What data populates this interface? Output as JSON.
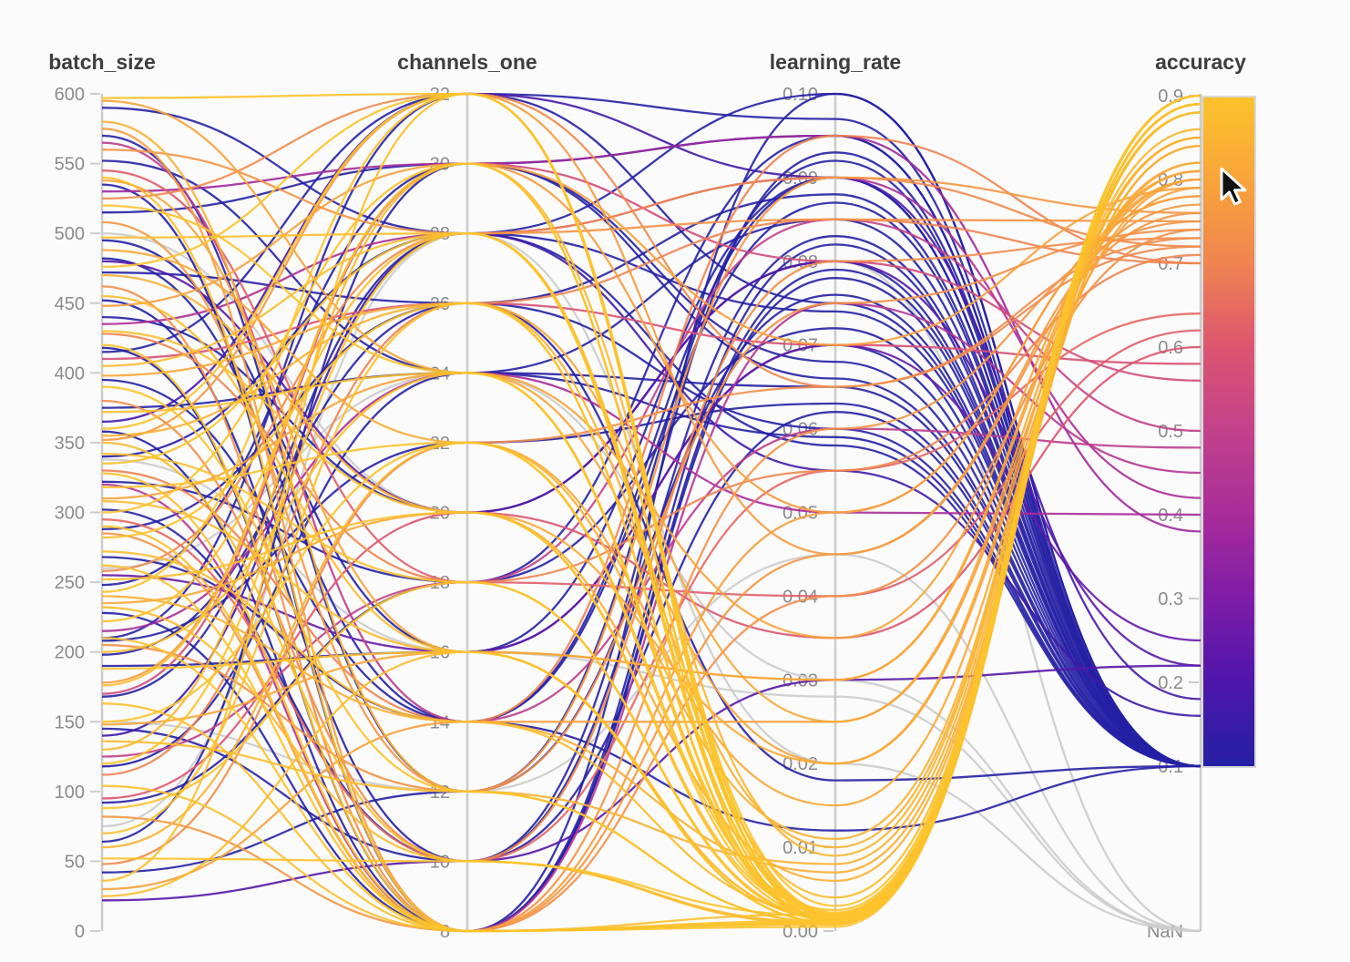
{
  "panel": {
    "background": "#fbfbfb"
  },
  "chart_data": {
    "type": "line",
    "variant": "parallel_coordinates",
    "title": "",
    "legend_position": "none",
    "grid": false,
    "columns": [
      "batch_size",
      "channels_one",
      "learning_rate",
      "accuracy"
    ],
    "axes": [
      {
        "name": "batch_size",
        "min": 0,
        "max": 600,
        "ticks": [
          "600",
          "550",
          "500",
          "450",
          "400",
          "350",
          "300",
          "250",
          "200",
          "150",
          "100",
          "50",
          "0"
        ]
      },
      {
        "name": "channels_one",
        "min": 8,
        "max": 32,
        "ticks": [
          "32",
          "30",
          "28",
          "26",
          "24",
          "22",
          "20",
          "18",
          "16",
          "14",
          "12",
          "10",
          "8"
        ]
      },
      {
        "name": "learning_rate",
        "min": 0,
        "max": 0.1,
        "ticks": [
          "0.10",
          "0.09",
          "0.08",
          "0.07",
          "0.06",
          "0.05",
          "0.04",
          "0.03",
          "0.02",
          "0.01",
          "0.00"
        ]
      },
      {
        "name": "accuracy",
        "min": 0.1,
        "max": 0.9,
        "ticks": [
          "0.9",
          "0.8",
          "0.7",
          "0.6",
          "0.5",
          "0.4",
          "0.3",
          "0.2",
          "0.1"
        ],
        "nan_label": "NaN"
      }
    ],
    "color": {
      "by": "accuracy",
      "nan_color": "#cccccc",
      "stops": [
        [
          0.9,
          "#FCC32C"
        ],
        [
          0.8,
          "#F8A43A"
        ],
        [
          0.7,
          "#EF8351"
        ],
        [
          0.6,
          "#DC5570"
        ],
        [
          0.5,
          "#C2418B"
        ],
        [
          0.4,
          "#A82C9A"
        ],
        [
          0.3,
          "#7E1CA8"
        ],
        [
          0.2,
          "#4E16AB"
        ],
        [
          0.1,
          "#2520A4"
        ]
      ]
    },
    "runs": [
      [
        597,
        32,
        0.001,
        0.9
      ],
      [
        540,
        8,
        0.0008,
        0.89
      ],
      [
        520,
        24,
        0.002,
        0.9
      ],
      [
        497,
        28,
        0.001,
        0.89
      ],
      [
        476,
        32,
        0.003,
        0.9
      ],
      [
        455,
        16,
        0.0015,
        0.88
      ],
      [
        430,
        20,
        0.002,
        0.89
      ],
      [
        420,
        8,
        0.0005,
        0.9
      ],
      [
        405,
        28,
        0.004,
        0.88
      ],
      [
        390,
        12,
        0.001,
        0.9
      ],
      [
        372,
        24,
        0.0012,
        0.89
      ],
      [
        360,
        32,
        0.002,
        0.9
      ],
      [
        350,
        10,
        0.0008,
        0.88
      ],
      [
        342,
        18,
        0.0015,
        0.89
      ],
      [
        335,
        28,
        0.001,
        0.9
      ],
      [
        328,
        8,
        0.002,
        0.89
      ],
      [
        318,
        22,
        0.0025,
        0.9
      ],
      [
        308,
        16,
        0.001,
        0.88
      ],
      [
        300,
        30,
        0.0018,
        0.9
      ],
      [
        290,
        8,
        0.0008,
        0.89
      ],
      [
        282,
        26,
        0.0012,
        0.9
      ],
      [
        272,
        14,
        0.002,
        0.88
      ],
      [
        262,
        8,
        0.001,
        0.9
      ],
      [
        252,
        20,
        0.0015,
        0.89
      ],
      [
        243,
        32,
        0.0022,
        0.9
      ],
      [
        232,
        10,
        0.001,
        0.88
      ],
      [
        222,
        28,
        0.0018,
        0.89
      ],
      [
        210,
        8,
        0.0009,
        0.9
      ],
      [
        200,
        24,
        0.0014,
        0.89
      ],
      [
        188,
        16,
        0.001,
        0.9
      ],
      [
        176,
        30,
        0.002,
        0.88
      ],
      [
        163,
        8,
        0.0012,
        0.89
      ],
      [
        150,
        22,
        0.0016,
        0.9
      ],
      [
        136,
        12,
        0.001,
        0.88
      ],
      [
        120,
        28,
        0.002,
        0.9
      ],
      [
        104,
        8,
        0.0008,
        0.89
      ],
      [
        88,
        18,
        0.0013,
        0.9
      ],
      [
        70,
        26,
        0.001,
        0.89
      ],
      [
        52,
        10,
        0.0018,
        0.9
      ],
      [
        36,
        32,
        0.001,
        0.89
      ],
      [
        25,
        16,
        0.0015,
        0.88
      ],
      [
        580,
        12,
        0.008,
        0.85
      ],
      [
        470,
        20,
        0.006,
        0.84
      ],
      [
        355,
        26,
        0.01,
        0.85
      ],
      [
        240,
        14,
        0.007,
        0.84
      ],
      [
        130,
        30,
        0.009,
        0.86
      ],
      [
        60,
        22,
        0.011,
        0.85
      ],
      [
        595,
        24,
        0.02,
        0.8
      ],
      [
        575,
        8,
        0.05,
        0.78
      ],
      [
        560,
        28,
        0.085,
        0.75
      ],
      [
        538,
        16,
        0.03,
        0.8
      ],
      [
        525,
        32,
        0.065,
        0.72
      ],
      [
        508,
        12,
        0.09,
        0.76
      ],
      [
        488,
        22,
        0.015,
        0.82
      ],
      [
        462,
        8,
        0.04,
        0.74
      ],
      [
        448,
        30,
        0.07,
        0.79
      ],
      [
        428,
        18,
        0.055,
        0.71
      ],
      [
        398,
        26,
        0.025,
        0.81
      ],
      [
        380,
        10,
        0.08,
        0.73
      ],
      [
        352,
        32,
        0.045,
        0.77
      ],
      [
        330,
        14,
        0.095,
        0.7
      ],
      [
        310,
        24,
        0.035,
        0.8
      ],
      [
        285,
        8,
        0.06,
        0.75
      ],
      [
        258,
        28,
        0.09,
        0.72
      ],
      [
        235,
        20,
        0.02,
        0.82
      ],
      [
        205,
        12,
        0.075,
        0.74
      ],
      [
        178,
        30,
        0.05,
        0.78
      ],
      [
        148,
        16,
        0.03,
        0.81
      ],
      [
        112,
        26,
        0.085,
        0.7
      ],
      [
        82,
        8,
        0.045,
        0.76
      ],
      [
        48,
        22,
        0.065,
        0.73
      ],
      [
        30,
        14,
        0.025,
        0.79
      ],
      [
        545,
        18,
        0.04,
        0.62
      ],
      [
        410,
        26,
        0.07,
        0.58
      ],
      [
        295,
        10,
        0.055,
        0.64
      ],
      [
        170,
        30,
        0.08,
        0.56
      ],
      [
        95,
        20,
        0.035,
        0.6
      ],
      [
        565,
        14,
        0.06,
        0.48
      ],
      [
        435,
        28,
        0.09,
        0.42
      ],
      [
        320,
        8,
        0.075,
        0.45
      ],
      [
        215,
        24,
        0.05,
        0.4
      ],
      [
        125,
        18,
        0.085,
        0.5
      ],
      [
        530,
        30,
        0.095,
        0.38
      ],
      [
        22,
        10,
        0.03,
        0.22
      ],
      [
        480,
        20,
        0.08,
        0.22
      ],
      [
        365,
        32,
        0.09,
        0.18
      ],
      [
        255,
        16,
        0.07,
        0.25
      ],
      [
        140,
        28,
        0.055,
        0.16
      ],
      [
        590,
        28,
        0.1,
        0.1
      ],
      [
        570,
        12,
        0.092,
        0.1
      ],
      [
        552,
        24,
        0.085,
        0.1
      ],
      [
        535,
        8,
        0.078,
        0.1
      ],
      [
        515,
        30,
        0.095,
        0.1
      ],
      [
        495,
        16,
        0.07,
        0.1
      ],
      [
        472,
        26,
        0.088,
        0.1
      ],
      [
        452,
        10,
        0.062,
        0.1
      ],
      [
        440,
        20,
        0.08,
        0.1
      ],
      [
        415,
        32,
        0.075,
        0.1
      ],
      [
        395,
        14,
        0.09,
        0.1
      ],
      [
        375,
        24,
        0.065,
        0.1
      ],
      [
        358,
        8,
        0.082,
        0.1
      ],
      [
        340,
        28,
        0.058,
        0.1
      ],
      [
        322,
        18,
        0.072,
        0.1
      ],
      [
        302,
        10,
        0.093,
        0.1
      ],
      [
        288,
        26,
        0.06,
        0.1
      ],
      [
        268,
        14,
        0.087,
        0.1
      ],
      [
        248,
        30,
        0.068,
        0.1
      ],
      [
        228,
        8,
        0.079,
        0.1
      ],
      [
        208,
        22,
        0.063,
        0.1
      ],
      [
        190,
        16,
        0.09,
        0.1
      ],
      [
        168,
        28,
        0.074,
        0.1
      ],
      [
        145,
        10,
        0.083,
        0.1
      ],
      [
        118,
        24,
        0.059,
        0.1
      ],
      [
        92,
        18,
        0.095,
        0.1
      ],
      [
        64,
        30,
        0.066,
        0.1
      ],
      [
        42,
        12,
        0.076,
        0.1
      ],
      [
        418,
        8,
        0.1,
        0.1
      ],
      [
        210,
        32,
        0.097,
        0.1
      ],
      [
        482,
        14,
        0.012,
        0.1
      ],
      [
        198,
        26,
        0.018,
        0.1
      ],
      [
        500,
        20,
        0.08,
        null
      ],
      [
        338,
        16,
        0.028,
        null
      ],
      [
        260,
        24,
        0.03,
        null
      ],
      [
        150,
        12,
        0.045,
        null
      ],
      [
        75,
        28,
        0.02,
        null
      ]
    ]
  },
  "cursor": {
    "visible": true,
    "name": "arrow-pointer"
  }
}
